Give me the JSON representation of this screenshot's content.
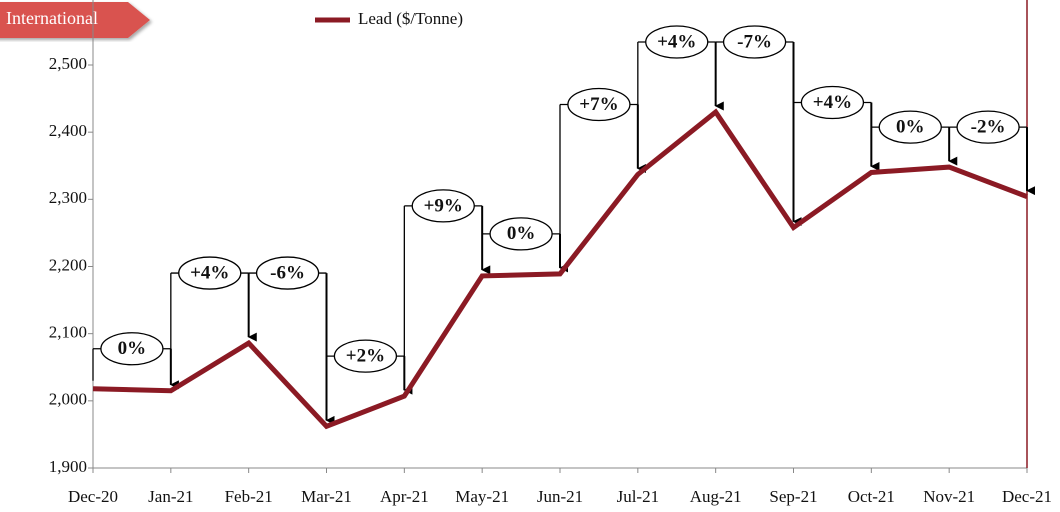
{
  "chart_data": {
    "type": "line",
    "tag": "International",
    "categories": [
      "Dec-20",
      "Jan-21",
      "Feb-21",
      "Mar-21",
      "Apr-21",
      "May-21",
      "Jun-21",
      "Jul-21",
      "Aug-21",
      "Sep-21",
      "Oct-21",
      "Nov-21",
      "Dec-21"
    ],
    "series": [
      {
        "name": "Lead ($/Tonne)",
        "color": "#8b1a24",
        "values": [
          2018,
          2015,
          2086,
          1962,
          2007,
          2186,
          2189,
          2337,
          2430,
          2258,
          2340,
          2348,
          2304
        ]
      }
    ],
    "annotations": [
      "0%",
      "+4%",
      "-6%",
      "+2%",
      "+9%",
      "0%",
      "+7%",
      "+4%",
      "-7%",
      "+4%",
      "0%",
      "-2%"
    ],
    "ylim": [
      1900,
      2500
    ],
    "yticks": [
      {
        "value": 1900,
        "label": "1,900"
      },
      {
        "value": 2000,
        "label": "2,000"
      },
      {
        "value": 2100,
        "label": "2,100"
      },
      {
        "value": 2200,
        "label": "2,200"
      },
      {
        "value": 2300,
        "label": "2,300"
      },
      {
        "value": 2400,
        "label": "2,400"
      },
      {
        "value": 2500,
        "label": "2,500"
      }
    ]
  }
}
